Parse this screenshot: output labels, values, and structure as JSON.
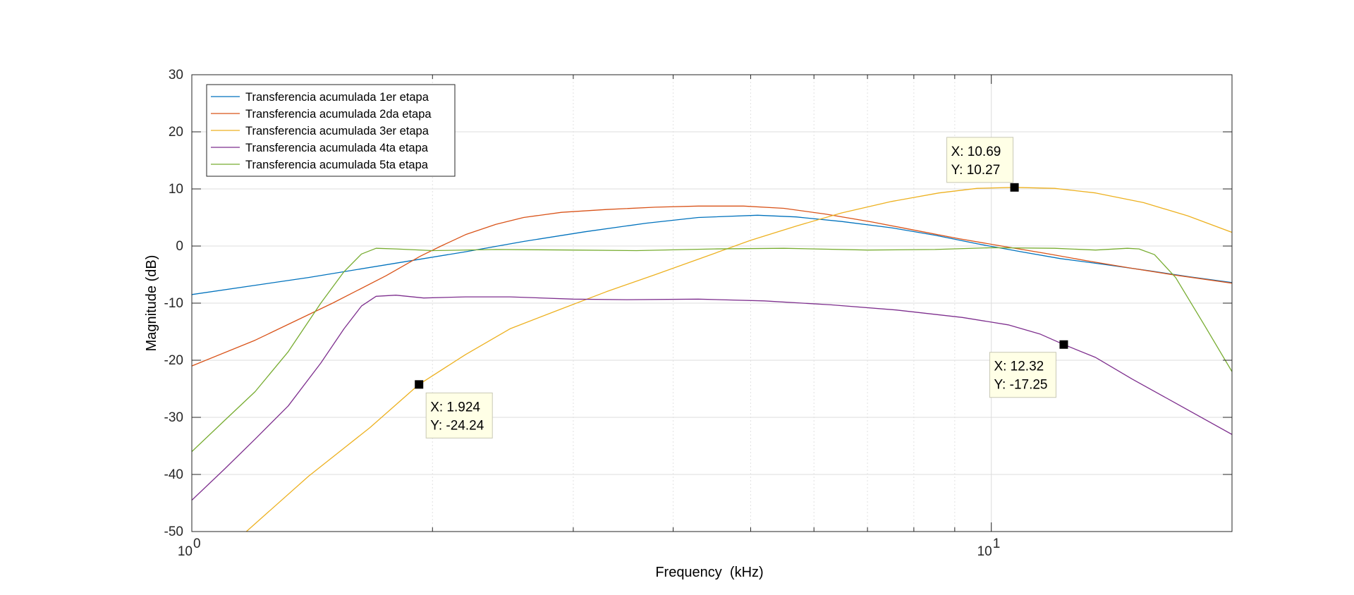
{
  "chart_data": {
    "type": "line",
    "title": "",
    "xlabel": "Frequency  (kHz)",
    "ylabel": "Magnitude (dB)",
    "xscale": "log",
    "xlim": [
      1,
      20
    ],
    "ylim": [
      -50,
      30
    ],
    "x_ticks": [
      {
        "value": 1,
        "base": "10",
        "exp": "0"
      },
      {
        "value": 10,
        "base": "10",
        "exp": "1"
      }
    ],
    "y_ticks": [
      -50,
      -40,
      -30,
      -20,
      -10,
      0,
      10,
      20,
      30
    ],
    "grid": true,
    "legend_position": "top-left",
    "series": [
      {
        "name": "Transferencia acumulada 1er etapa",
        "color": "#0072BD",
        "points": [
          [
            1,
            -8.5
          ],
          [
            1.4,
            -5.5
          ],
          [
            1.8,
            -3
          ],
          [
            2.2,
            -1
          ],
          [
            2.6,
            0.8
          ],
          [
            3.1,
            2.5
          ],
          [
            3.7,
            4
          ],
          [
            4.3,
            5
          ],
          [
            5.1,
            5.4
          ],
          [
            5.7,
            5.1
          ],
          [
            6.5,
            4.3
          ],
          [
            7.5,
            3.2
          ],
          [
            8.5,
            1.9
          ],
          [
            9.6,
            0.4
          ],
          [
            10.9,
            -1
          ],
          [
            12.2,
            -2.2
          ],
          [
            13.8,
            -3.2
          ],
          [
            15.7,
            -4.3
          ],
          [
            17.7,
            -5.4
          ],
          [
            20,
            -6.4
          ]
        ]
      },
      {
        "name": "Transferencia acumulada 2da etapa",
        "color": "#D95319",
        "points": [
          [
            1,
            -21
          ],
          [
            1.2,
            -16.5
          ],
          [
            1.5,
            -10
          ],
          [
            1.75,
            -5.2
          ],
          [
            1.93,
            -1.8
          ],
          [
            2.05,
            0
          ],
          [
            2.2,
            2
          ],
          [
            2.4,
            3.8
          ],
          [
            2.6,
            5
          ],
          [
            2.9,
            5.9
          ],
          [
            3.3,
            6.4
          ],
          [
            3.8,
            6.8
          ],
          [
            4.3,
            7
          ],
          [
            4.9,
            7
          ],
          [
            5.5,
            6.6
          ],
          [
            6.2,
            5.6
          ],
          [
            7.1,
            4.2
          ],
          [
            8,
            2.8
          ],
          [
            9.1,
            1.3
          ],
          [
            10.3,
            0
          ],
          [
            11.7,
            -1.3
          ],
          [
            13.2,
            -2.6
          ],
          [
            15,
            -3.9
          ],
          [
            17,
            -5.1
          ],
          [
            20,
            -6.5
          ]
        ]
      },
      {
        "name": "Transferencia acumulada 3er etapa",
        "color": "#EDB120",
        "points": [
          [
            1.17,
            -50
          ],
          [
            1.4,
            -40.3
          ],
          [
            1.67,
            -31.8
          ],
          [
            1.924,
            -24.24
          ],
          [
            2.2,
            -19
          ],
          [
            2.5,
            -14.5
          ],
          [
            2.9,
            -11
          ],
          [
            3.3,
            -8
          ],
          [
            3.8,
            -5
          ],
          [
            4.4,
            -1.8
          ],
          [
            5,
            1
          ],
          [
            5.7,
            3.5
          ],
          [
            6.5,
            5.8
          ],
          [
            7.5,
            7.8
          ],
          [
            8.6,
            9.3
          ],
          [
            9.6,
            10.1
          ],
          [
            10.69,
            10.27
          ],
          [
            12,
            10.1
          ],
          [
            13.5,
            9.3
          ],
          [
            15.5,
            7.6
          ],
          [
            17.6,
            5.3
          ],
          [
            20,
            2.4
          ]
        ]
      },
      {
        "name": "Transferencia acumulada 4ta etapa",
        "color": "#7E2F8E",
        "points": [
          [
            1,
            -44.5
          ],
          [
            1.1,
            -39
          ],
          [
            1.2,
            -33.8
          ],
          [
            1.32,
            -28
          ],
          [
            1.45,
            -20.5
          ],
          [
            1.55,
            -14.5
          ],
          [
            1.63,
            -10.5
          ],
          [
            1.7,
            -8.8
          ],
          [
            1.8,
            -8.6
          ],
          [
            1.95,
            -9.1
          ],
          [
            2.2,
            -8.9
          ],
          [
            2.5,
            -8.9
          ],
          [
            3,
            -9.3
          ],
          [
            3.5,
            -9.4
          ],
          [
            4.3,
            -9.3
          ],
          [
            5.2,
            -9.6
          ],
          [
            6.3,
            -10.3
          ],
          [
            7.6,
            -11.2
          ],
          [
            9.2,
            -12.5
          ],
          [
            10.5,
            -13.8
          ],
          [
            11.5,
            -15.4
          ],
          [
            12.32,
            -17.25
          ],
          [
            13.5,
            -19.5
          ],
          [
            15,
            -23.3
          ],
          [
            17,
            -27.5
          ],
          [
            20,
            -33
          ]
        ]
      },
      {
        "name": "Transferencia acumulada 5ta etapa",
        "color": "#77AC30",
        "points": [
          [
            1,
            -36
          ],
          [
            1.1,
            -30.5
          ],
          [
            1.2,
            -25.5
          ],
          [
            1.32,
            -18.5
          ],
          [
            1.45,
            -10
          ],
          [
            1.55,
            -4.5
          ],
          [
            1.63,
            -1.4
          ],
          [
            1.7,
            -0.4
          ],
          [
            1.8,
            -0.5
          ],
          [
            2,
            -0.8
          ],
          [
            2.4,
            -0.6
          ],
          [
            3,
            -0.7
          ],
          [
            3.6,
            -0.8
          ],
          [
            4.5,
            -0.5
          ],
          [
            5.5,
            -0.4
          ],
          [
            7,
            -0.7
          ],
          [
            8.5,
            -0.6
          ],
          [
            10,
            -0.3
          ],
          [
            12,
            -0.4
          ],
          [
            13.5,
            -0.7
          ],
          [
            14.8,
            -0.4
          ],
          [
            15.3,
            -0.5
          ],
          [
            16,
            -1.5
          ],
          [
            17,
            -5.5
          ],
          [
            18.5,
            -14
          ],
          [
            20,
            -22
          ]
        ]
      }
    ],
    "datatips": [
      {
        "x": 1.924,
        "y": -24.24,
        "label_x": "X: 1.924",
        "label_y": "Y: -24.24",
        "placement": "below-right"
      },
      {
        "x": 10.69,
        "y": 10.27,
        "label_x": "X: 10.69",
        "label_y": "Y: 10.27",
        "placement": "above-left"
      },
      {
        "x": 12.32,
        "y": -17.25,
        "label_x": "X: 12.32",
        "label_y": "Y: -17.25",
        "placement": "below-left"
      }
    ]
  }
}
